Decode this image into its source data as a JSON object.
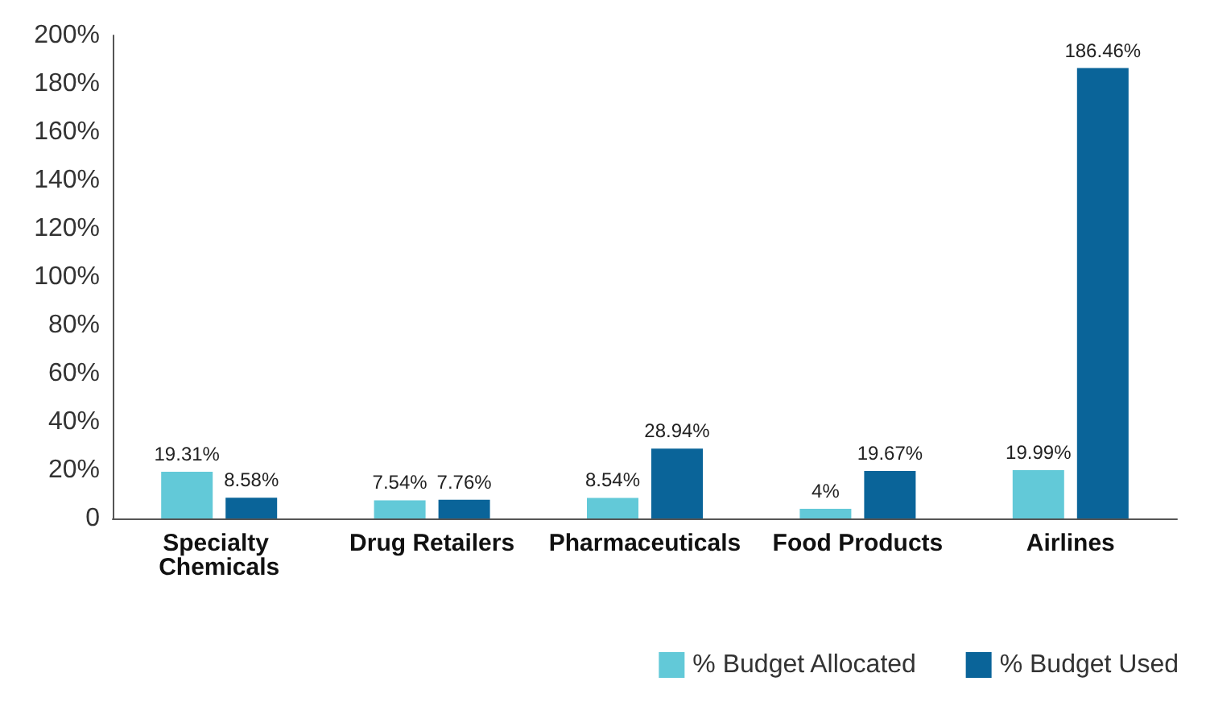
{
  "chart_data": {
    "type": "bar",
    "categories": [
      "Specialty Chemicals",
      "Drug Retailers",
      "Pharmaceuticals",
      "Food Products",
      "Airlines"
    ],
    "series": [
      {
        "name": "% Budget Allocated",
        "color": "#62c9d8",
        "values": [
          19.31,
          7.54,
          8.54,
          4,
          19.99
        ],
        "value_labels": [
          "19.31%",
          "7.54%",
          "8.54%",
          "4%",
          "19.99%"
        ]
      },
      {
        "name": "% Budget Used",
        "color": "#0a6499",
        "values": [
          8.58,
          7.76,
          28.94,
          19.67,
          186.46
        ],
        "value_labels": [
          "8.58%",
          "7.76%",
          "28.94%",
          "19.67%",
          "186.46%"
        ]
      }
    ],
    "ylim": [
      0,
      200
    ],
    "yticks": [
      {
        "value": 0,
        "label": "0"
      },
      {
        "value": 20,
        "label": "20%"
      },
      {
        "value": 40,
        "label": "40%"
      },
      {
        "value": 60,
        "label": "60%"
      },
      {
        "value": 80,
        "label": "80%"
      },
      {
        "value": 100,
        "label": "100%"
      },
      {
        "value": 120,
        "label": "120%"
      },
      {
        "value": 140,
        "label": "140%"
      },
      {
        "value": 160,
        "label": "160%"
      },
      {
        "value": 180,
        "label": "180%"
      },
      {
        "value": 200,
        "label": "200%"
      }
    ],
    "grid": false,
    "legend": "bottom right"
  }
}
